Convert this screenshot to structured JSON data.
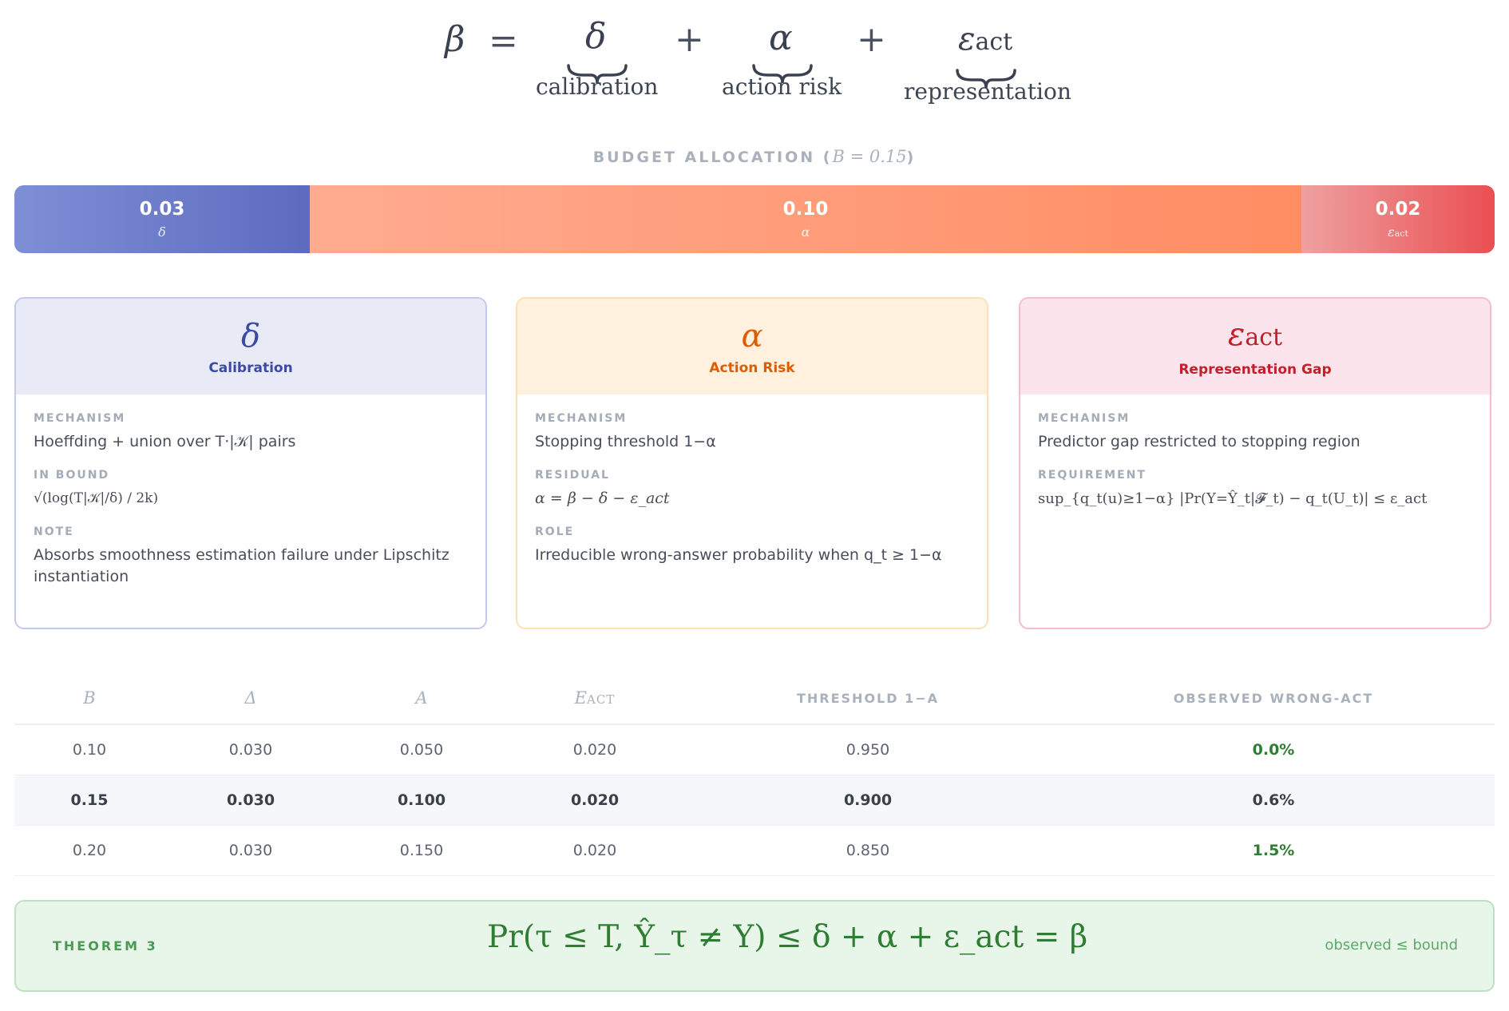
{
  "equation": {
    "lhs": "β",
    "equals": "=",
    "plus": "+",
    "terms": [
      {
        "symbol": "δ",
        "label": "calibration"
      },
      {
        "symbol": "α",
        "label": "action risk"
      },
      {
        "symbol": "ε",
        "symbol_sub": "act",
        "label": "representation"
      }
    ]
  },
  "budget": {
    "title": "BUDGET ALLOCATION (",
    "title_math": "B = 0.15",
    "title_close": ")",
    "segments": [
      {
        "value": "0.03",
        "symbol": "δ",
        "color_from": "#7e8fd6",
        "color_to": "#5d6bbf"
      },
      {
        "value": "0.10",
        "symbol": "α",
        "color_from": "#ffab90",
        "color_to": "#ff8d63"
      },
      {
        "value": "0.02",
        "symbol": "ε",
        "symbol_sub": "act",
        "color_from": "#eea0a0",
        "color_to": "#ea4f52"
      }
    ]
  },
  "cards": [
    {
      "symbol": "δ",
      "name": "Calibration",
      "color": "#3c4aa6",
      "rows": [
        {
          "key": "MECHANISM",
          "text": "Hoeffding + union over T·|𝒦| pairs"
        },
        {
          "key": "IN BOUND",
          "text": "√(log(T|𝒦|/δ) / 2k)"
        },
        {
          "key": "NOTE",
          "text": "Absorbs smoothness estimation failure under Lipschitz instantiation"
        }
      ]
    },
    {
      "symbol": "α",
      "name": "Action Risk",
      "color": "#e05a00",
      "rows": [
        {
          "key": "MECHANISM",
          "text": "Stopping threshold 1−α"
        },
        {
          "key": "RESIDUAL",
          "text": "α = β − δ − ε_act"
        },
        {
          "key": "ROLE",
          "text": "Irreducible wrong-answer probability when q_t ≥ 1−α"
        }
      ]
    },
    {
      "symbol": "ε",
      "symbol_sub": "act",
      "name": "Representation Gap",
      "color": "#c21f2a",
      "rows": [
        {
          "key": "MECHANISM",
          "text": "Predictor gap restricted to stopping region"
        },
        {
          "key": "REQUIREMENT",
          "text": "sup_{q_t(u)≥1−α} |Pr(Y=Ŷ_t|𝓕_t) − q_t(U_t)| ≤ ε_act"
        }
      ]
    }
  ],
  "table": {
    "headers": [
      "Β",
      "Δ",
      "Α",
      "Ε",
      "THRESHOLD 1−Α",
      "OBSERVED WRONG-ACT"
    ],
    "header_sub": "ACT",
    "rows": [
      [
        "0.10",
        "0.030",
        "0.050",
        "0.020",
        "0.950",
        "0.0%"
      ],
      [
        "0.15",
        "0.030",
        "0.100",
        "0.020",
        "0.900",
        "0.6%"
      ],
      [
        "0.20",
        "0.030",
        "0.150",
        "0.020",
        "0.850",
        "1.5%"
      ]
    ],
    "highlight_row": 1
  },
  "theorem": {
    "tag": "THEOREM 3",
    "formula": "Pr(τ ≤ T, Ŷ_τ ≠ Y)  ≤  δ + α + ε_act  =  β",
    "note": "observed ≤ bound",
    "color": "#2e7d32"
  }
}
